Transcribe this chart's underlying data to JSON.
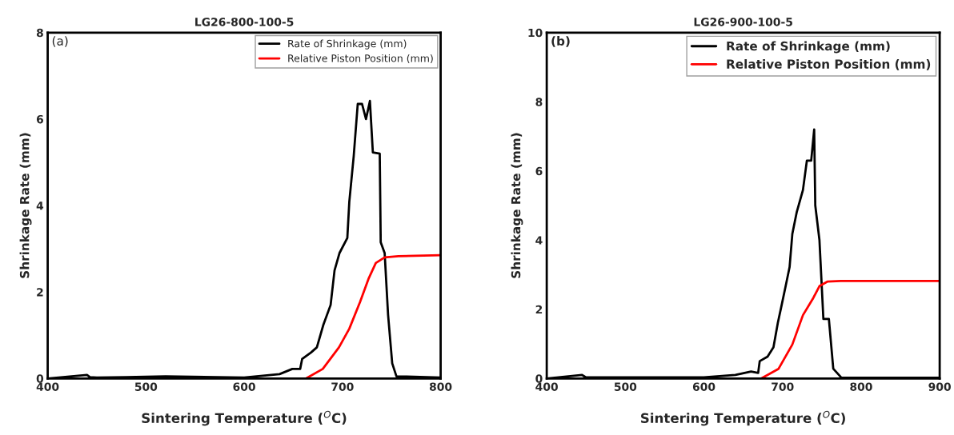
{
  "chart_data": [
    {
      "type": "line",
      "title": "LG26-800-100-5",
      "xlabel": "Sintering Temperature ($^{O}$C)",
      "ylabel": "Shrinkage Rate (mm)",
      "annotations": [
        "(a)"
      ],
      "xlim": [
        400,
        800
      ],
      "ylim": [
        0,
        8
      ],
      "xticks": [
        400,
        500,
        600,
        700,
        800
      ],
      "yticks": [
        0,
        2,
        4,
        6,
        8
      ],
      "legend": "top right",
      "grid": false,
      "series": [
        {
          "name": "Rate of Shrinkage (mm)",
          "color": "#000000",
          "x": [
            400,
            440,
            443,
            450,
            480,
            520,
            600,
            636,
            649,
            657,
            659,
            668,
            674,
            680.6,
            688,
            692,
            697,
            705,
            707,
            711.5,
            715.6,
            720,
            724,
            728,
            731,
            738,
            739,
            743,
            746.5,
            750.7,
            755,
            800
          ],
          "values": [
            0,
            0.08,
            0.03,
            0.02,
            0.03,
            0.05,
            0.02,
            0.1,
            0.22,
            0.22,
            0.45,
            0.6,
            0.72,
            1.24,
            1.7,
            2.5,
            2.9,
            3.25,
            4.08,
            5.14,
            6.35,
            6.35,
            6.0,
            6.42,
            5.23,
            5.2,
            3.15,
            2.9,
            1.47,
            0.35,
            0.05,
            0.02
          ]
        },
        {
          "name": "Relative Piston Position (mm)",
          "color": "#ff0000",
          "x": [
            663,
            680,
            696.5,
            707,
            718,
            726.5,
            734,
            743,
            757,
            800
          ],
          "values": [
            0,
            0.22,
            0.72,
            1.15,
            1.77,
            2.3,
            2.67,
            2.8,
            2.83,
            2.85
          ]
        }
      ]
    },
    {
      "type": "line",
      "title": "LG26-900-100-5",
      "xlabel": "Sintering Temperature ($^{O}$C)",
      "ylabel": "Shrinkage Rate (mm)",
      "annotations": [
        "(b)"
      ],
      "xlim": [
        400,
        900
      ],
      "ylim": [
        0,
        10
      ],
      "xticks": [
        400,
        500,
        600,
        700,
        800,
        900
      ],
      "yticks": [
        0,
        2,
        4,
        6,
        8,
        10
      ],
      "legend": "top right",
      "grid": false,
      "series": [
        {
          "name": "Rate of Shrinkage (mm)",
          "color": "#000000",
          "x": [
            400,
            445,
            450,
            500,
            600,
            640,
            660,
            669,
            671,
            681,
            688.5,
            694,
            699,
            704,
            709,
            712.5,
            718,
            726,
            731,
            736.5,
            740.3,
            741.7,
            747,
            752,
            759,
            764.6,
            775,
            900
          ],
          "values": [
            0,
            0.1,
            0.03,
            0.03,
            0.03,
            0.1,
            0.2,
            0.16,
            0.5,
            0.63,
            0.9,
            1.6,
            2.13,
            2.67,
            3.22,
            4.18,
            4.8,
            5.45,
            6.3,
            6.3,
            7.2,
            5.0,
            4.0,
            1.72,
            1.72,
            0.28,
            0.02,
            0.02
          ]
        },
        {
          "name": "Relative Piston Position (mm)",
          "color": "#ff0000",
          "x": [
            673,
            695,
            712.5,
            726,
            738.5,
            747,
            757,
            774,
            900
          ],
          "values": [
            0,
            0.28,
            0.98,
            1.83,
            2.3,
            2.67,
            2.8,
            2.82,
            2.82
          ]
        }
      ]
    }
  ]
}
